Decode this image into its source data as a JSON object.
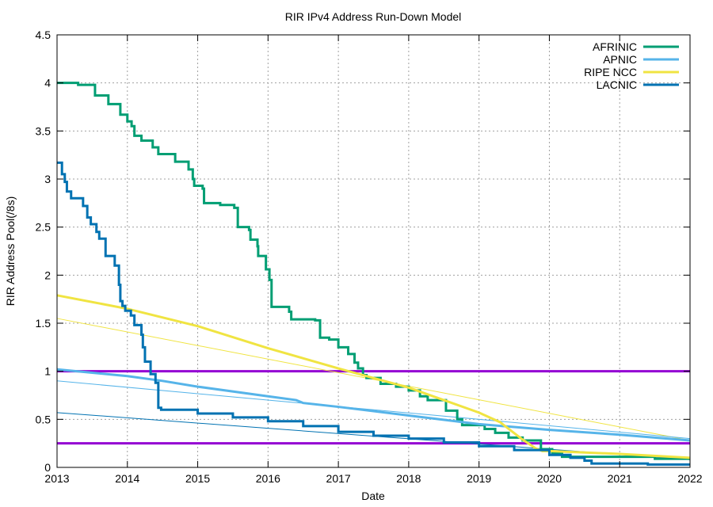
{
  "chart_data": {
    "type": "line",
    "title": "RIR IPv4 Address Run-Down Model",
    "xlabel": "Date",
    "ylabel": "RIR Address Pool(/8s)",
    "xlim": [
      2013,
      2022
    ],
    "ylim": [
      0,
      4.5
    ],
    "xticks": [
      "2013",
      "2014",
      "2015",
      "2016",
      "2017",
      "2018",
      "2019",
      "2020",
      "2021",
      "2022"
    ],
    "yticks": [
      "0",
      "0.5",
      "1",
      "1.5",
      "2",
      "2.5",
      "3",
      "3.5",
      "4",
      "4.5"
    ],
    "grid": true,
    "legend_position": "top-right",
    "series": [
      {
        "name": "AFRINIC",
        "color": "#009e73",
        "style": "steps",
        "points": [
          [
            2013.0,
            4.0
          ],
          [
            2013.3,
            3.98
          ],
          [
            2013.54,
            3.87
          ],
          [
            2013.73,
            3.78
          ],
          [
            2013.9,
            3.67
          ],
          [
            2014.0,
            3.6
          ],
          [
            2014.06,
            3.55
          ],
          [
            2014.1,
            3.45
          ],
          [
            2014.2,
            3.4
          ],
          [
            2014.36,
            3.33
          ],
          [
            2014.44,
            3.26
          ],
          [
            2014.68,
            3.18
          ],
          [
            2014.87,
            3.1
          ],
          [
            2014.93,
            3.0
          ],
          [
            2014.95,
            2.93
          ],
          [
            2015.07,
            2.9
          ],
          [
            2015.09,
            2.75
          ],
          [
            2015.32,
            2.73
          ],
          [
            2015.52,
            2.7
          ],
          [
            2015.57,
            2.5
          ],
          [
            2015.73,
            2.47
          ],
          [
            2015.75,
            2.37
          ],
          [
            2015.85,
            2.3
          ],
          [
            2015.86,
            2.2
          ],
          [
            2015.97,
            2.06
          ],
          [
            2016.02,
            1.95
          ],
          [
            2016.05,
            1.67
          ],
          [
            2016.3,
            1.62
          ],
          [
            2016.33,
            1.54
          ],
          [
            2016.67,
            1.53
          ],
          [
            2016.74,
            1.35
          ],
          [
            2016.87,
            1.33
          ],
          [
            2017.0,
            1.25
          ],
          [
            2017.14,
            1.18
          ],
          [
            2017.23,
            1.09
          ],
          [
            2017.28,
            1.03
          ],
          [
            2017.35,
            0.96
          ],
          [
            2017.4,
            0.93
          ],
          [
            2017.6,
            0.87
          ],
          [
            2017.82,
            0.84
          ],
          [
            2018.0,
            0.8
          ],
          [
            2018.16,
            0.74
          ],
          [
            2018.27,
            0.7
          ],
          [
            2018.53,
            0.59
          ],
          [
            2018.69,
            0.5
          ],
          [
            2018.76,
            0.44
          ],
          [
            2019.08,
            0.4
          ],
          [
            2019.23,
            0.36
          ],
          [
            2019.42,
            0.31
          ],
          [
            2019.62,
            0.28
          ],
          [
            2019.88,
            0.19
          ],
          [
            2020.04,
            0.15
          ],
          [
            2020.18,
            0.11
          ],
          [
            2021.5,
            0.09
          ],
          [
            2022.0,
            0.09
          ]
        ]
      },
      {
        "name": "APNIC",
        "color": "#56b4e9",
        "style": "line",
        "points": [
          [
            2013.0,
            1.02
          ],
          [
            2014.0,
            0.95
          ],
          [
            2014.5,
            0.9
          ],
          [
            2015.0,
            0.84
          ],
          [
            2016.0,
            0.74
          ],
          [
            2016.4,
            0.7
          ],
          [
            2016.5,
            0.67
          ],
          [
            2017.0,
            0.63
          ],
          [
            2018.0,
            0.54
          ],
          [
            2019.0,
            0.45
          ],
          [
            2020.0,
            0.39
          ],
          [
            2021.0,
            0.34
          ],
          [
            2022.0,
            0.28
          ]
        ]
      },
      {
        "name": "RIPE NCC",
        "color": "#f0e442",
        "style": "line",
        "points": [
          [
            2013.0,
            1.79
          ],
          [
            2014.0,
            1.65
          ],
          [
            2015.0,
            1.47
          ],
          [
            2016.0,
            1.24
          ],
          [
            2017.0,
            1.03
          ],
          [
            2018.0,
            0.83
          ],
          [
            2018.5,
            0.7
          ],
          [
            2019.0,
            0.57
          ],
          [
            2019.3,
            0.47
          ],
          [
            2019.6,
            0.3
          ],
          [
            2019.8,
            0.2
          ],
          [
            2019.9,
            0.17
          ],
          [
            2020.0,
            0.17
          ],
          [
            2021.0,
            0.14
          ],
          [
            2022.0,
            0.1
          ]
        ]
      },
      {
        "name": "LACNIC",
        "color": "#0072b2",
        "style": "steps",
        "points": [
          [
            2013.0,
            3.17
          ],
          [
            2013.07,
            3.05
          ],
          [
            2013.11,
            2.97
          ],
          [
            2013.14,
            2.87
          ],
          [
            2013.2,
            2.8
          ],
          [
            2013.37,
            2.72
          ],
          [
            2013.43,
            2.6
          ],
          [
            2013.48,
            2.53
          ],
          [
            2013.56,
            2.45
          ],
          [
            2013.6,
            2.38
          ],
          [
            2013.69,
            2.2
          ],
          [
            2013.82,
            2.1
          ],
          [
            2013.88,
            1.9
          ],
          [
            2013.9,
            1.73
          ],
          [
            2013.93,
            1.68
          ],
          [
            2013.97,
            1.63
          ],
          [
            2014.05,
            1.58
          ],
          [
            2014.1,
            1.48
          ],
          [
            2014.2,
            1.38
          ],
          [
            2014.22,
            1.25
          ],
          [
            2014.25,
            1.1
          ],
          [
            2014.33,
            0.97
          ],
          [
            2014.4,
            0.88
          ],
          [
            2014.44,
            0.62
          ],
          [
            2014.48,
            0.6
          ],
          [
            2015.0,
            0.56
          ],
          [
            2015.5,
            0.52
          ],
          [
            2016.0,
            0.48
          ],
          [
            2016.5,
            0.43
          ],
          [
            2017.0,
            0.37
          ],
          [
            2017.5,
            0.33
          ],
          [
            2018.0,
            0.3
          ],
          [
            2018.5,
            0.26
          ],
          [
            2019.0,
            0.22
          ],
          [
            2019.5,
            0.18
          ],
          [
            2020.0,
            0.13
          ],
          [
            2020.3,
            0.1
          ],
          [
            2020.5,
            0.07
          ],
          [
            2020.6,
            0.04
          ],
          [
            2021.4,
            0.03
          ],
          [
            2022.0,
            0.03
          ]
        ]
      }
    ],
    "trend_lines": [
      {
        "color": "#f0e442",
        "points": [
          [
            2013,
            1.55
          ],
          [
            2022,
            0.28
          ]
        ]
      },
      {
        "color": "#56b4e9",
        "points": [
          [
            2013,
            0.9
          ],
          [
            2022,
            0.3
          ]
        ]
      },
      {
        "color": "#0072b2",
        "points": [
          [
            2013,
            0.57
          ],
          [
            2022,
            0.08
          ]
        ]
      }
    ],
    "reference_lines": [
      {
        "value": 1.0,
        "color": "#9400d3"
      },
      {
        "value": 0.25,
        "color": "#9400d3"
      }
    ]
  }
}
